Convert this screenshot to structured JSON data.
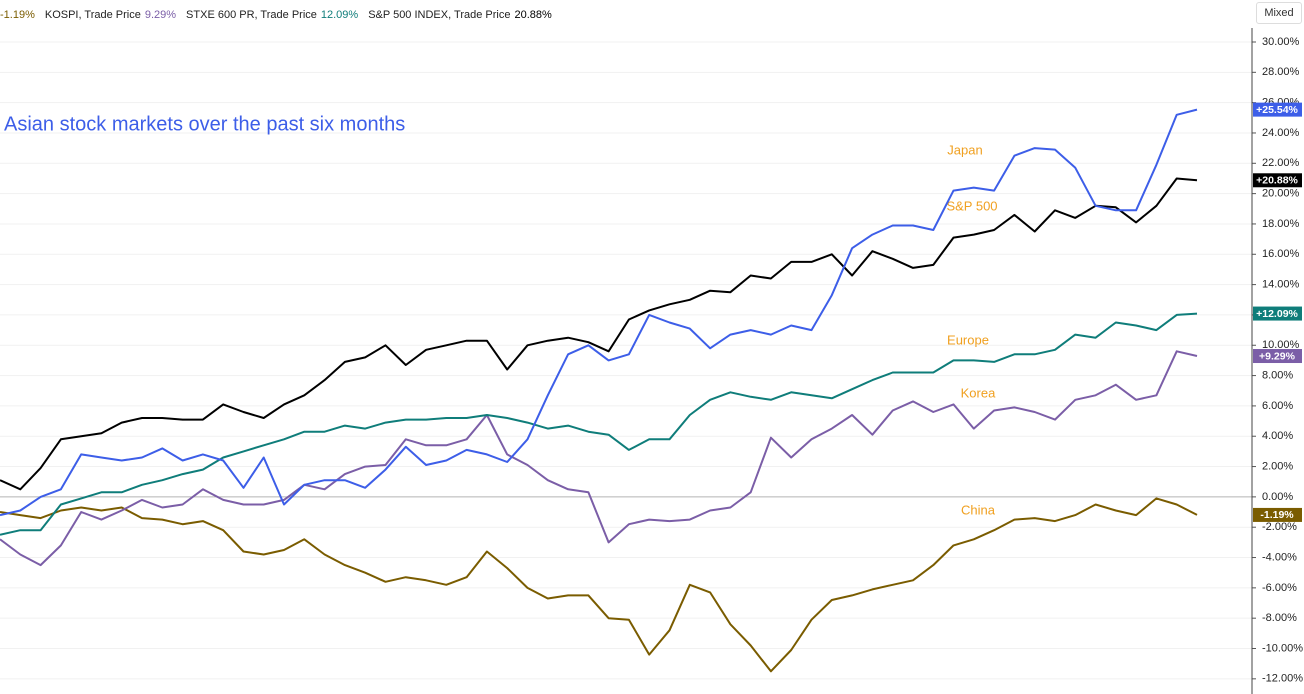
{
  "chart_data": {
    "type": "line",
    "title": "Asian stock markets over the past six months",
    "mode_button": "Mixed",
    "ylim": [
      -13,
      31
    ],
    "yticks": [
      {
        "value": 30,
        "label": "30.00%"
      },
      {
        "value": 28,
        "label": "28.00%"
      },
      {
        "value": 26,
        "label": "26.00%"
      },
      {
        "value": 24,
        "label": "24.00%"
      },
      {
        "value": 22,
        "label": "22.00%"
      },
      {
        "value": 20,
        "label": "20.00%"
      },
      {
        "value": 18,
        "label": "18.00%"
      },
      {
        "value": 16,
        "label": "16.00%"
      },
      {
        "value": 14,
        "label": "14.00%"
      },
      {
        "value": 12,
        "label": "12.00%"
      },
      {
        "value": 10,
        "label": "10.00%"
      },
      {
        "value": 8,
        "label": "8.00%"
      },
      {
        "value": 6,
        "label": "6.00%"
      },
      {
        "value": 4,
        "label": "4.00%"
      },
      {
        "value": 2,
        "label": "2.00%"
      },
      {
        "value": 0,
        "label": "0.00%"
      },
      {
        "value": -2,
        "label": "-2.00%"
      },
      {
        "value": -4,
        "label": "-4.00%"
      },
      {
        "value": -6,
        "label": "-6.00%"
      },
      {
        "value": -8,
        "label": "-8.00%"
      },
      {
        "value": -10,
        "label": "-10.00%"
      },
      {
        "value": -12,
        "label": "-12.00%"
      }
    ],
    "grid": true,
    "series": [
      {
        "name": "China",
        "color": "#7a5c00",
        "legend_value": "-1.19%",
        "last_label": "-1.19%",
        "values": [
          -1.0,
          -1.2,
          -1.4,
          -0.9,
          -0.7,
          -0.9,
          -0.7,
          -1.4,
          -1.5,
          -1.8,
          -1.6,
          -2.2,
          -3.6,
          -3.8,
          -3.5,
          -2.8,
          -3.8,
          -4.5,
          -5.0,
          -5.6,
          -5.3,
          -5.5,
          -5.8,
          -5.3,
          -3.6,
          -4.7,
          -6.0,
          -6.7,
          -6.5,
          -6.5,
          -8.0,
          -8.1,
          -10.4,
          -8.8,
          -5.8,
          -6.3,
          -8.4,
          -9.8,
          -11.5,
          -10.1,
          -8.1,
          -6.8,
          -6.5,
          -6.1,
          -5.8,
          -5.5,
          -4.5,
          -3.2,
          -2.8,
          -2.2,
          -1.5,
          -1.4,
          -1.6,
          -1.2,
          -0.5,
          -0.9,
          -1.2,
          -0.1,
          -0.5,
          -1.19
        ]
      },
      {
        "name": "Korea",
        "color": "#7b5ea7",
        "legend": "KOSPI, Trade Price",
        "legend_value": "9.29%",
        "last_label": "+9.29%",
        "values": [
          -2.8,
          -3.8,
          -4.5,
          -3.2,
          -1.0,
          -1.5,
          -0.9,
          -0.2,
          -0.7,
          -0.5,
          0.5,
          -0.2,
          -0.5,
          -0.5,
          -0.2,
          0.8,
          0.5,
          1.5,
          2.0,
          2.1,
          3.8,
          3.4,
          3.4,
          3.8,
          5.4,
          2.8,
          2.1,
          1.1,
          0.5,
          0.3,
          -3.0,
          -1.8,
          -1.5,
          -1.6,
          -1.5,
          -0.9,
          -0.7,
          0.3,
          3.9,
          2.6,
          3.8,
          4.5,
          5.4,
          4.1,
          5.7,
          6.3,
          5.6,
          6.1,
          4.5,
          5.7,
          5.9,
          5.6,
          5.1,
          6.4,
          6.7,
          7.4,
          6.4,
          6.7,
          9.6,
          9.29
        ]
      },
      {
        "name": "Europe",
        "color": "#0f7d7a",
        "legend": "STXE 600 PR, Trade Price",
        "legend_value": "12.09%",
        "last_label": "+12.09%",
        "values": [
          -2.5,
          -2.2,
          -2.2,
          -0.5,
          -0.1,
          0.3,
          0.3,
          0.8,
          1.1,
          1.5,
          1.8,
          2.6,
          3.0,
          3.4,
          3.8,
          4.3,
          4.3,
          4.7,
          4.5,
          4.9,
          5.1,
          5.1,
          5.2,
          5.2,
          5.4,
          5.2,
          4.9,
          4.5,
          4.7,
          4.3,
          4.1,
          3.1,
          3.8,
          3.8,
          5.4,
          6.4,
          6.9,
          6.6,
          6.4,
          6.9,
          6.7,
          6.5,
          7.1,
          7.7,
          8.2,
          8.2,
          8.2,
          9.0,
          9.0,
          8.9,
          9.4,
          9.4,
          9.7,
          10.7,
          10.5,
          11.5,
          11.3,
          11.0,
          12.0,
          12.09
        ]
      },
      {
        "name": "S&P 500",
        "color": "#000000",
        "legend": "S&P 500 INDEX, Trade Price",
        "legend_value": "20.88%",
        "last_label": "+20.88%",
        "values": [
          1.1,
          0.5,
          1.9,
          3.8,
          4.0,
          4.2,
          4.9,
          5.2,
          5.2,
          5.1,
          5.1,
          6.1,
          5.6,
          5.2,
          6.1,
          6.7,
          7.7,
          8.9,
          9.2,
          10.0,
          8.7,
          9.7,
          10.0,
          10.3,
          10.3,
          8.4,
          10.0,
          10.3,
          10.5,
          10.2,
          9.6,
          11.7,
          12.3,
          12.7,
          13.0,
          13.6,
          13.5,
          14.6,
          14.4,
          15.5,
          15.5,
          16.0,
          14.6,
          16.2,
          15.7,
          15.1,
          15.3,
          17.1,
          17.3,
          17.6,
          18.6,
          17.5,
          18.9,
          18.4,
          19.2,
          19.1,
          18.1,
          19.2,
          21.0,
          20.88
        ]
      },
      {
        "name": "Japan",
        "color": "#3d5ee8",
        "last_label": "+25.54%",
        "values": [
          -1.2,
          -0.9,
          0,
          0.5,
          2.8,
          2.6,
          2.4,
          2.6,
          3.2,
          2.4,
          2.8,
          2.4,
          0.6,
          2.6,
          -0.5,
          0.8,
          1.1,
          1.1,
          0.6,
          1.8,
          3.3,
          2.1,
          2.4,
          3.1,
          2.8,
          2.3,
          3.8,
          6.7,
          9.4,
          10.0,
          9.0,
          9.4,
          12.0,
          11.5,
          11.1,
          9.8,
          10.7,
          11.0,
          10.7,
          11.3,
          11.0,
          13.3,
          16.4,
          17.3,
          17.9,
          17.9,
          17.6,
          20.2,
          20.4,
          20.2,
          22.5,
          23.0,
          22.9,
          21.7,
          19.2,
          18.9,
          18.9,
          21.9,
          25.2,
          25.54
        ]
      }
    ]
  }
}
